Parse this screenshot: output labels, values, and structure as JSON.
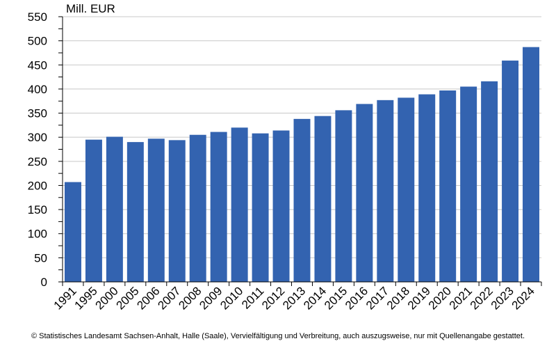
{
  "chart_data": {
    "type": "bar",
    "unit_label": "Mill. EUR",
    "categories": [
      "1991",
      "1995",
      "2000",
      "2005",
      "2006",
      "2007",
      "2008",
      "2009",
      "2010",
      "2011",
      "2012",
      "2013",
      "2014",
      "2015",
      "2016",
      "2017",
      "2018",
      "2019",
      "2020",
      "2021",
      "2022",
      "2023",
      "2024"
    ],
    "values": [
      207,
      295,
      301,
      290,
      297,
      294,
      305,
      311,
      320,
      308,
      314,
      338,
      344,
      356,
      369,
      377,
      382,
      389,
      397,
      405,
      416,
      459,
      487
    ],
    "yticks": [
      0,
      50,
      100,
      150,
      200,
      250,
      300,
      350,
      400,
      450,
      500,
      550
    ],
    "ylim": [
      0,
      550
    ],
    "grid": true,
    "bar_color": "#3363b0",
    "grid_color": "#c8c8c8"
  },
  "footer": {
    "text": "© Statistisches Landesamt Sachsen-Anhalt, Halle (Saale), Vervielfältigung und Verbreitung, auch auszugsweise, nur mit Quellenangabe gestattet."
  }
}
